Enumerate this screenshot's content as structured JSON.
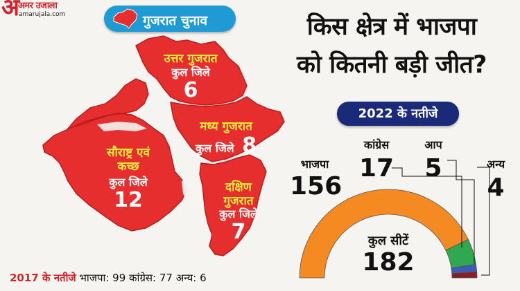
{
  "brand": {
    "glyph": "अ",
    "name": "अमर उजाला",
    "site": "amarujala.com"
  },
  "pill": {
    "title": "गुजरात चुनाव"
  },
  "headline": {
    "line1": "किस क्षेत्र में भाजपा",
    "line2": "को कितनी बड़ी जीत?"
  },
  "results_title": "2022 के नतीजे",
  "regions": [
    {
      "name": "उत्तर गुजरात",
      "label": "कुल जिले",
      "value": "6"
    },
    {
      "name": "मध्य गुजरात",
      "label": "कुल जिले",
      "value": "8"
    },
    {
      "name_line1": "सौराष्ट्र एवं",
      "name_line2": "कच्छ",
      "label": "कुल जिले",
      "value": "12"
    },
    {
      "name_line1": "दक्षिण",
      "name_line2": "गुजरात",
      "label": "कुल जिले",
      "value": "7"
    }
  ],
  "chart_data": {
    "type": "pie",
    "subtype": "half-donut",
    "title": "2022 के नतीजे",
    "total_label": "कुल सीटें",
    "total": 182,
    "slices": [
      {
        "name": "भाजपा",
        "value": 156,
        "color": "#f58a23"
      },
      {
        "name": "कांग्रेस",
        "value": 17,
        "color": "#2fa84f"
      },
      {
        "name": "आप",
        "value": 5,
        "color": "#3b5bb5"
      },
      {
        "name": "अन्य",
        "value": 4,
        "color": "#8a1f23"
      }
    ]
  },
  "footer": {
    "lead": "2017 के नतीजे",
    "text": "भाजपा: 99 कांग्रेस: 77 अन्य: 6"
  },
  "colors": {
    "map_red": "#e62e2e",
    "accent_red": "#d3222a",
    "pill_blue": "#1e9bd4",
    "navy": "#1b2a78"
  }
}
